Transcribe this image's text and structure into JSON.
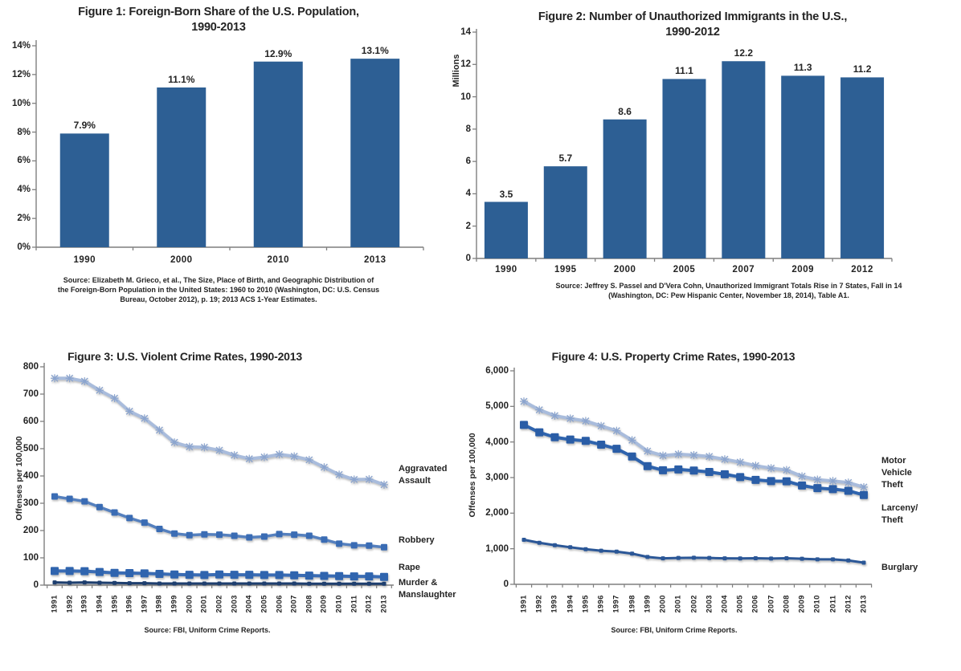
{
  "page": {
    "background": "#ffffff",
    "text_color": "#232323",
    "axis_color": "#7f7f7f"
  },
  "chart_data": [
    {
      "id": "fig1",
      "type": "bar",
      "title": "Figure 1: Foreign-Born Share of the U.S. Population,\n1990-2013",
      "ylabel": "",
      "ylim": [
        0,
        14
      ],
      "yticks": [
        0,
        2,
        4,
        6,
        8,
        10,
        12,
        14
      ],
      "ytick_labels": [
        "0%",
        "2%",
        "4%",
        "6%",
        "8%",
        "10%",
        "12%",
        "14%"
      ],
      "categories": [
        "1990",
        "2000",
        "2010",
        "2013"
      ],
      "values": [
        7.9,
        11.1,
        12.9,
        13.1
      ],
      "value_labels": [
        "7.9%",
        "11.1%",
        "12.9%",
        "13.1%"
      ],
      "bar_color": "#2D5F94",
      "grid": false,
      "source": "Source: Elizabeth M. Grieco, et al., The Size, Place of Birth, and Geographic Distribution of\nthe Foreign-Born Population in the United States: 1960 to 2010 (Washington, DC: U.S. Census\nBureau, October 2012), p. 19; 2013 ACS 1-Year Estimates."
    },
    {
      "id": "fig2",
      "type": "bar",
      "title": "Figure 2: Number of Unauthorized Immigrants in the U.S.,\n1990-2012",
      "ylabel": "Millions",
      "ylim": [
        0,
        14
      ],
      "yticks": [
        0,
        2,
        4,
        6,
        8,
        10,
        12,
        14
      ],
      "ytick_labels": [
        "0",
        "2",
        "4",
        "6",
        "8",
        "10",
        "12",
        "14"
      ],
      "categories": [
        "1990",
        "1995",
        "2000",
        "2005",
        "2007",
        "2009",
        "2012"
      ],
      "values": [
        3.5,
        5.7,
        8.6,
        11.1,
        12.2,
        11.3,
        11.2
      ],
      "value_labels": [
        "3.5",
        "5.7",
        "8.6",
        "11.1",
        "12.2",
        "11.3",
        "11.2"
      ],
      "bar_color": "#2D5F94",
      "grid": false,
      "source": "Source: Jeffrey S. Passel and D'Vera Cohn, Unauthorized Immigrant Totals Rise in 7 States, Fall in 14\n(Washington, DC: Pew Hispanic Center, November 18, 2014), Table A1."
    },
    {
      "id": "fig3",
      "type": "line",
      "title": "Figure 3: U.S. Violent Crime Rates, 1990-2013",
      "ylabel": "Offenses per 100,000",
      "ylim": [
        0,
        800
      ],
      "yticks": [
        0,
        100,
        200,
        300,
        400,
        500,
        600,
        700,
        800
      ],
      "ytick_labels": [
        "0",
        "100",
        "200",
        "300",
        "400",
        "500",
        "600",
        "700",
        "800"
      ],
      "x": [
        "1991",
        "1992",
        "1993",
        "1994",
        "1995",
        "1996",
        "1997",
        "1998",
        "1999",
        "2000",
        "2001",
        "2002",
        "2003",
        "2004",
        "2005",
        "2006",
        "2007",
        "2008",
        "2009",
        "2010",
        "2011",
        "2012",
        "2013"
      ],
      "grid": false,
      "legend_position": "right-annotations",
      "series": [
        {
          "name": "Aggravated Assault",
          "label": "Aggravated\nAssault",
          "color": "#A9BCDC",
          "marker_color": "#8CA5CE",
          "marker": "star",
          "values": [
            758,
            758,
            747,
            714,
            685,
            637,
            611,
            568,
            523,
            507,
            505,
            494,
            476,
            463,
            469,
            479,
            472,
            459,
            432,
            405,
            387,
            388,
            368
          ]
        },
        {
          "name": "Robbery",
          "label": "Robbery",
          "color": "#5580BE",
          "marker_color": "#3A6CB4",
          "marker": "square",
          "values": [
            325,
            316,
            307,
            286,
            266,
            246,
            229,
            206,
            189,
            183,
            186,
            185,
            181,
            175,
            178,
            187,
            185,
            181,
            167,
            152,
            146,
            145,
            139
          ]
        },
        {
          "name": "Rape",
          "label": "Rape",
          "color": "#3A6CB4",
          "marker_color": "#2F64AE",
          "marker": "square-big",
          "values": [
            52,
            52,
            51,
            48,
            45,
            44,
            43,
            41,
            39,
            38,
            37,
            39,
            38,
            38,
            37,
            37,
            36,
            35,
            34,
            33,
            32,
            32,
            30
          ]
        },
        {
          "name": "Murder & Manslaughter",
          "label": "Murder &\nManslaughter",
          "color": "#1E3F6F",
          "marker_color": "#1E3F6F",
          "marker": "square-small",
          "values": [
            10,
            9,
            10,
            9,
            8,
            7,
            7,
            6,
            6,
            6,
            6,
            6,
            6,
            6,
            6,
            6,
            6,
            5,
            5,
            5,
            5,
            5,
            5
          ]
        }
      ],
      "source": "Source: FBI, Uniform Crime Reports."
    },
    {
      "id": "fig4",
      "type": "line",
      "title": "Figure 4: U.S. Property Crime Rates, 1990-2013",
      "ylabel": "Offenses per 100,000",
      "ylim": [
        0,
        6000
      ],
      "yticks": [
        0,
        1000,
        2000,
        3000,
        4000,
        5000,
        6000
      ],
      "ytick_labels": [
        "0",
        "1,000",
        "2,000",
        "3,000",
        "4,000",
        "5,000",
        "6,000"
      ],
      "x": [
        "1991",
        "1992",
        "1993",
        "1994",
        "1995",
        "1996",
        "1997",
        "1998",
        "1999",
        "2000",
        "2001",
        "2002",
        "2003",
        "2004",
        "2005",
        "2006",
        "2007",
        "2008",
        "2009",
        "2010",
        "2011",
        "2012",
        "2013"
      ],
      "grid": false,
      "legend_position": "right-annotations",
      "series": [
        {
          "name": "Motor Vehicle Theft",
          "label": "Motor\nVehicle\nTheft",
          "color": "#A9BCDC",
          "marker_color": "#8CA5CE",
          "marker": "star",
          "values": [
            5140,
            4903,
            4740,
            4660,
            4591,
            4451,
            4316,
            4052,
            3743,
            3618,
            3658,
            3631,
            3591,
            3514,
            3432,
            3334,
            3264,
            3212,
            3036,
            2942,
            2905,
            2859,
            2731
          ]
        },
        {
          "name": "Larceny/Theft",
          "label": "Larceny/\nTheft",
          "color": "#2F64AE",
          "marker_color": "#2A5DA6",
          "marker": "square-big",
          "values": [
            4481,
            4271,
            4134,
            4069,
            4031,
            3925,
            3810,
            3592,
            3321,
            3206,
            3228,
            3198,
            3157,
            3093,
            3015,
            2936,
            2901,
            2897,
            2777,
            2703,
            2675,
            2629,
            2510
          ]
        },
        {
          "name": "Burglary",
          "label": "Burglary",
          "color": "#2B5797",
          "marker_color": "#2B5797",
          "marker": "square-small",
          "values": [
            1252,
            1168,
            1100,
            1042,
            987,
            945,
            919,
            863,
            770,
            729,
            742,
            747,
            741,
            730,
            727,
            733,
            726,
            733,
            718,
            701,
            702,
            672,
            610
          ]
        }
      ],
      "source": "Source: FBI, Uniform Crime Reports."
    }
  ]
}
